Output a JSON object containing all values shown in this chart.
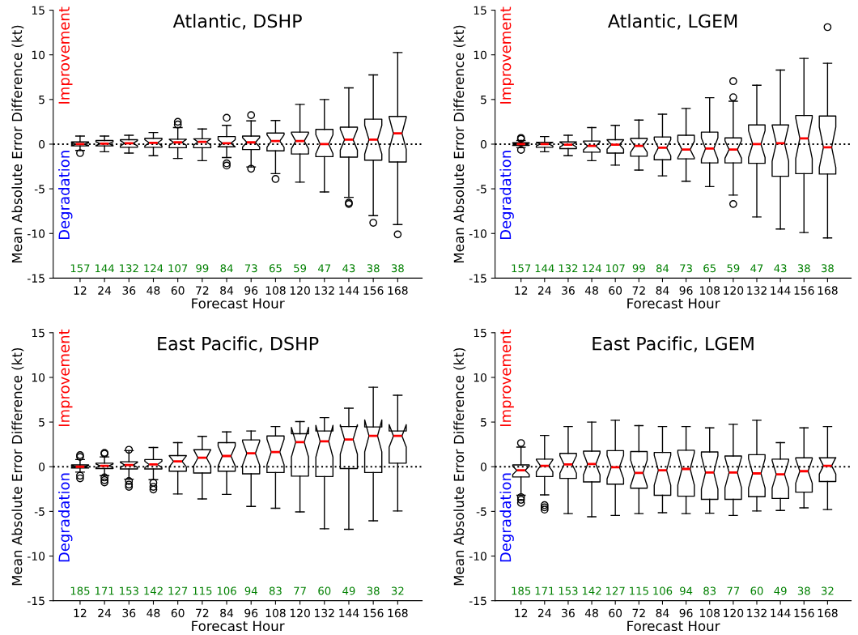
{
  "chart_data": [
    {
      "type": "box",
      "title": "Atlantic, DSHP",
      "xlabel": "Forecast Hour",
      "ylabel": "Mean Absolute Error Difference (kt)",
      "categories": [
        "12",
        "24",
        "36",
        "48",
        "60",
        "72",
        "84",
        "96",
        "108",
        "120",
        "132",
        "144",
        "156",
        "168"
      ],
      "ylim": [
        -15,
        15
      ],
      "yticks": [
        -15,
        -10,
        -5,
        0,
        5,
        10,
        15
      ],
      "grid": false,
      "ref_lines": [
        {
          "axis": "y",
          "value": 0,
          "line_style": "dotted",
          "color": "#000000"
        }
      ],
      "boxes": [
        {
          "low": -0.7,
          "q1": -0.2,
          "median": 0,
          "q3": 0.25,
          "high": 0.9,
          "outliers": [
            -1.0
          ]
        },
        {
          "low": -0.85,
          "q1": -0.2,
          "median": 0.05,
          "q3": 0.4,
          "high": 0.9
        },
        {
          "low": -1.0,
          "q1": -0.35,
          "median": 0.1,
          "q3": 0.5,
          "high": 1.0
        },
        {
          "low": -1.3,
          "q1": -0.35,
          "median": 0.15,
          "q3": 0.65,
          "high": 1.3
        },
        {
          "low": -1.6,
          "q1": -0.4,
          "median": 0.2,
          "q3": 0.55,
          "high": 1.85,
          "outliers": [
            2.5,
            2.2
          ]
        },
        {
          "low": -1.85,
          "q1": -0.4,
          "median": 0.25,
          "q3": 0.6,
          "high": 1.7
        },
        {
          "low": -1.5,
          "q1": -0.3,
          "median": 0.1,
          "q3": 0.85,
          "high": 2.1,
          "outliers": [
            2.95,
            -2.15,
            -2.4
          ]
        },
        {
          "low": -2.55,
          "q1": -0.6,
          "median": 0.2,
          "q3": 0.9,
          "high": 2.6,
          "outliers": [
            3.25,
            -2.75
          ]
        },
        {
          "low": -3.3,
          "q1": -0.75,
          "median": 0.35,
          "q3": 1.25,
          "high": 2.65,
          "outliers": [
            -3.9
          ]
        },
        {
          "low": -4.25,
          "q1": -1.1,
          "median": 0.35,
          "q3": 1.35,
          "high": 4.45
        },
        {
          "low": -5.35,
          "q1": -1.4,
          "median": 0,
          "q3": 1.65,
          "high": 5.0
        },
        {
          "low": -5.95,
          "q1": -1.45,
          "median": 0.5,
          "q3": 1.9,
          "high": 6.3,
          "outliers": [
            -6.55,
            -6.7
          ]
        },
        {
          "low": -8.0,
          "q1": -1.8,
          "median": 0.5,
          "q3": 2.8,
          "high": 7.75,
          "outliers": [
            -8.8
          ]
        },
        {
          "low": -9.0,
          "q1": -2.0,
          "median": 1.2,
          "q3": 3.1,
          "high": 10.25,
          "outliers": [
            -10.1
          ]
        }
      ],
      "annotations": [
        "Improvement",
        "Degradation",
        "157",
        "144",
        "132",
        "124",
        "107",
        "99",
        "84",
        "73",
        "65",
        "59",
        "47",
        "43",
        "38",
        "38"
      ]
    },
    {
      "type": "box",
      "title": "Atlantic, LGEM",
      "xlabel": "Forecast Hour",
      "ylabel": "Mean Absolute Error Difference (kt)",
      "categories": [
        "12",
        "24",
        "36",
        "48",
        "60",
        "72",
        "84",
        "96",
        "108",
        "120",
        "132",
        "144",
        "156",
        "168"
      ],
      "ylim": [
        -15,
        15
      ],
      "yticks": [
        -15,
        -10,
        -5,
        0,
        5,
        10,
        15
      ],
      "grid": false,
      "ref_lines": [
        {
          "axis": "y",
          "value": 0,
          "line_style": "dotted",
          "color": "#000000"
        }
      ],
      "boxes": [
        {
          "low": -0.4,
          "q1": -0.15,
          "median": 0,
          "q3": 0.15,
          "high": 0.4,
          "outliers": [
            0.7,
            0.6,
            -0.65
          ]
        },
        {
          "low": -0.85,
          "q1": -0.35,
          "median": 0,
          "q3": 0.2,
          "high": 0.85
        },
        {
          "low": -1.3,
          "q1": -0.5,
          "median": -0.05,
          "q3": 0.25,
          "high": 1.0
        },
        {
          "low": -1.85,
          "q1": -0.9,
          "median": -0.2,
          "q3": 0.35,
          "high": 1.85
        },
        {
          "low": -2.35,
          "q1": -1.0,
          "median": -0.05,
          "q3": 0.5,
          "high": 2.1
        },
        {
          "low": -2.9,
          "q1": -1.35,
          "median": -0.2,
          "q3": 0.65,
          "high": 2.7
        },
        {
          "low": -3.55,
          "q1": -1.75,
          "median": -0.4,
          "q3": 0.8,
          "high": 3.35
        },
        {
          "low": -4.15,
          "q1": -1.65,
          "median": -0.6,
          "q3": 1.0,
          "high": 4.0
        },
        {
          "low": -4.75,
          "q1": -2.1,
          "median": -0.5,
          "q3": 1.35,
          "high": 5.2
        },
        {
          "low": -5.7,
          "q1": -2.1,
          "median": -0.6,
          "q3": 0.7,
          "high": 4.8,
          "outliers": [
            7.05,
            5.25,
            -6.7
          ]
        },
        {
          "low": -8.15,
          "q1": -2.15,
          "median": 0,
          "q3": 2.15,
          "high": 6.6
        },
        {
          "low": -9.5,
          "q1": -3.6,
          "median": 0.1,
          "q3": 2.15,
          "high": 8.3
        },
        {
          "low": -9.9,
          "q1": -3.3,
          "median": 0.65,
          "q3": 3.2,
          "high": 9.6
        },
        {
          "low": -10.5,
          "q1": -3.35,
          "median": -0.35,
          "q3": 3.15,
          "high": 9.05,
          "outliers": [
            13.1
          ]
        }
      ],
      "annotations": [
        "Improvement",
        "Degradation",
        "157",
        "144",
        "132",
        "124",
        "107",
        "99",
        "84",
        "73",
        "65",
        "59",
        "47",
        "43",
        "38",
        "38"
      ]
    },
    {
      "type": "box",
      "title": "East Pacific, DSHP",
      "xlabel": "Forecast Hour",
      "ylabel": "Mean Absolute Error Difference (kt)",
      "categories": [
        "12",
        "24",
        "36",
        "48",
        "60",
        "72",
        "84",
        "96",
        "108",
        "120",
        "132",
        "144",
        "156",
        "168"
      ],
      "ylim": [
        -15,
        15
      ],
      "yticks": [
        -15,
        -10,
        -5,
        0,
        5,
        10,
        15
      ],
      "grid": false,
      "ref_lines": [
        {
          "axis": "y",
          "value": 0,
          "line_style": "dotted",
          "color": "#000000"
        }
      ],
      "boxes": [
        {
          "low": -0.6,
          "q1": -0.15,
          "median": 0,
          "q3": 0.2,
          "high": 0.8,
          "outliers": [
            1.3,
            1.1,
            -1.0,
            -1.3
          ]
        },
        {
          "low": -1.0,
          "q1": -0.2,
          "median": 0.1,
          "q3": 0.4,
          "high": 1.1,
          "outliers": [
            1.55,
            1.45,
            -1.2,
            -1.5,
            -1.75
          ]
        },
        {
          "low": -1.4,
          "q1": -0.25,
          "median": 0.2,
          "q3": 0.55,
          "high": 1.8,
          "outliers": [
            1.9,
            -1.6,
            -2.0,
            -2.25
          ]
        },
        {
          "low": -1.45,
          "q1": -0.25,
          "median": 0.25,
          "q3": 0.8,
          "high": 2.15,
          "outliers": [
            -1.8,
            -2.25,
            -2.55
          ]
        },
        {
          "low": -3.05,
          "q1": -0.5,
          "median": 0.6,
          "q3": 1.25,
          "high": 2.7
        },
        {
          "low": -3.6,
          "q1": -0.7,
          "median": 1.0,
          "q3": 1.9,
          "high": 3.4
        },
        {
          "low": -3.1,
          "q1": -0.5,
          "median": 1.2,
          "q3": 2.7,
          "high": 3.9
        },
        {
          "low": -4.45,
          "q1": -0.8,
          "median": 1.5,
          "q3": 3.0,
          "high": 4.0
        },
        {
          "low": -4.65,
          "q1": -0.65,
          "median": 1.65,
          "q3": 3.45,
          "high": 4.5
        },
        {
          "low": -5.05,
          "q1": -1.05,
          "median": 2.75,
          "q3": 3.7,
          "high": 5.05
        },
        {
          "low": -6.95,
          "q1": -1.1,
          "median": 2.85,
          "q3": 4.0,
          "high": 5.5
        },
        {
          "low": -7.0,
          "q1": -0.2,
          "median": 3.05,
          "q3": 4.5,
          "high": 6.55
        },
        {
          "low": -6.05,
          "q1": -0.65,
          "median": 3.45,
          "q3": 4.45,
          "high": 8.9
        },
        {
          "low": -4.95,
          "q1": 0.4,
          "median": 3.45,
          "q3": 4.0,
          "high": 8.0
        }
      ],
      "annotations": [
        "Improvement",
        "Degradation",
        "185",
        "171",
        "153",
        "142",
        "127",
        "115",
        "106",
        "94",
        "83",
        "77",
        "60",
        "49",
        "38",
        "32"
      ]
    },
    {
      "type": "box",
      "title": "East Pacific, LGEM",
      "xlabel": "Forecast Hour",
      "ylabel": "Mean Absolute Error Difference (kt)",
      "categories": [
        "12",
        "24",
        "36",
        "48",
        "60",
        "72",
        "84",
        "96",
        "108",
        "120",
        "132",
        "144",
        "156",
        "168"
      ],
      "ylim": [
        -15,
        15
      ],
      "yticks": [
        -15,
        -10,
        -5,
        0,
        5,
        10,
        15
      ],
      "grid": false,
      "ref_lines": [
        {
          "axis": "y",
          "value": 0,
          "line_style": "dotted",
          "color": "#000000"
        }
      ],
      "boxes": [
        {
          "low": -3.2,
          "q1": -1.15,
          "median": -0.4,
          "q3": 0.2,
          "high": 2.2,
          "outliers": [
            2.65,
            -3.4,
            -3.7,
            -4.05
          ]
        },
        {
          "low": -3.15,
          "q1": -1.1,
          "median": 0.1,
          "q3": 0.85,
          "high": 3.5,
          "outliers": [
            -4.3,
            -4.55,
            -4.8
          ]
        },
        {
          "low": -5.25,
          "q1": -1.3,
          "median": 0.25,
          "q3": 1.5,
          "high": 4.5
        },
        {
          "low": -5.6,
          "q1": -1.7,
          "median": 0.3,
          "q3": 1.75,
          "high": 5.0
        },
        {
          "low": -5.45,
          "q1": -1.95,
          "median": -0.05,
          "q3": 1.8,
          "high": 5.2
        },
        {
          "low": -5.25,
          "q1": -2.4,
          "median": -0.7,
          "q3": 1.7,
          "high": 4.6
        },
        {
          "low": -5.15,
          "q1": -3.2,
          "median": -0.4,
          "q3": 1.6,
          "high": 4.5
        },
        {
          "low": -5.25,
          "q1": -3.3,
          "median": -0.25,
          "q3": 1.85,
          "high": 4.5
        },
        {
          "low": -5.2,
          "q1": -3.65,
          "median": -0.65,
          "q3": 1.65,
          "high": 4.35
        },
        {
          "low": -5.45,
          "q1": -3.65,
          "median": -0.65,
          "q3": 1.2,
          "high": 4.75
        },
        {
          "low": -4.95,
          "q1": -3.35,
          "median": -0.75,
          "q3": 1.35,
          "high": 5.2
        },
        {
          "low": -4.9,
          "q1": -3.55,
          "median": -0.85,
          "q3": 0.85,
          "high": 2.7
        },
        {
          "low": -4.6,
          "q1": -2.85,
          "median": -0.5,
          "q3": 1.0,
          "high": 4.35
        },
        {
          "low": -4.8,
          "q1": -1.65,
          "median": 0.1,
          "q3": 1.0,
          "high": 4.5
        }
      ],
      "annotations": [
        "Improvement",
        "Degradation",
        "185",
        "171",
        "153",
        "142",
        "127",
        "115",
        "106",
        "94",
        "83",
        "77",
        "60",
        "49",
        "38",
        "32"
      ]
    }
  ]
}
